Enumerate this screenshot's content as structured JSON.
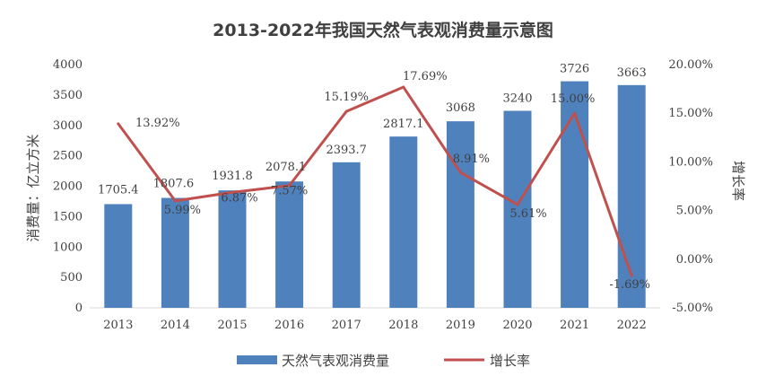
{
  "chart_data": {
    "type": "bar+line",
    "title": "2013-2022年我国天然气表观消费量示意图",
    "categories": [
      "2013",
      "2014",
      "2015",
      "2016",
      "2017",
      "2018",
      "2019",
      "2020",
      "2021",
      "2022"
    ],
    "series": [
      {
        "name": "天然气表观消费量",
        "type": "bar",
        "axis": "left",
        "color": "#4f81bd",
        "values": [
          1705.4,
          1807.6,
          1931.8,
          2078.1,
          2393.7,
          2817.1,
          3068,
          3240,
          3726,
          3663
        ],
        "labels": [
          "1705.4",
          "1807.6",
          "1931.8",
          "2078.1",
          "2393.7",
          "2817.1",
          "3068",
          "3240",
          "3726",
          "3663"
        ]
      },
      {
        "name": "增长率",
        "type": "line",
        "axis": "right",
        "color": "#c0504d",
        "values": [
          13.92,
          5.99,
          6.87,
          7.57,
          15.19,
          17.69,
          8.91,
          5.61,
          15.0,
          -1.69
        ],
        "labels": [
          "13.92%",
          "5.99%",
          "6.87%",
          "7.57%",
          "15.19%",
          "17.69%",
          "8.91%",
          "5.61%",
          "15.00%",
          "-1.69%"
        ]
      }
    ],
    "ylabel": "消费量：亿立方米",
    "y2label": "增长率",
    "ylim": [
      0,
      4000
    ],
    "yticks": [
      "0",
      "500",
      "1000",
      "1500",
      "2000",
      "2500",
      "3000",
      "3500",
      "4000"
    ],
    "y2lim": [
      -5,
      20
    ],
    "y2ticks": [
      "-5.00%",
      "0.00%",
      "5.00%",
      "10.00%",
      "15.00%",
      "20.00%"
    ],
    "grid": false,
    "legend_position": "bottom"
  }
}
